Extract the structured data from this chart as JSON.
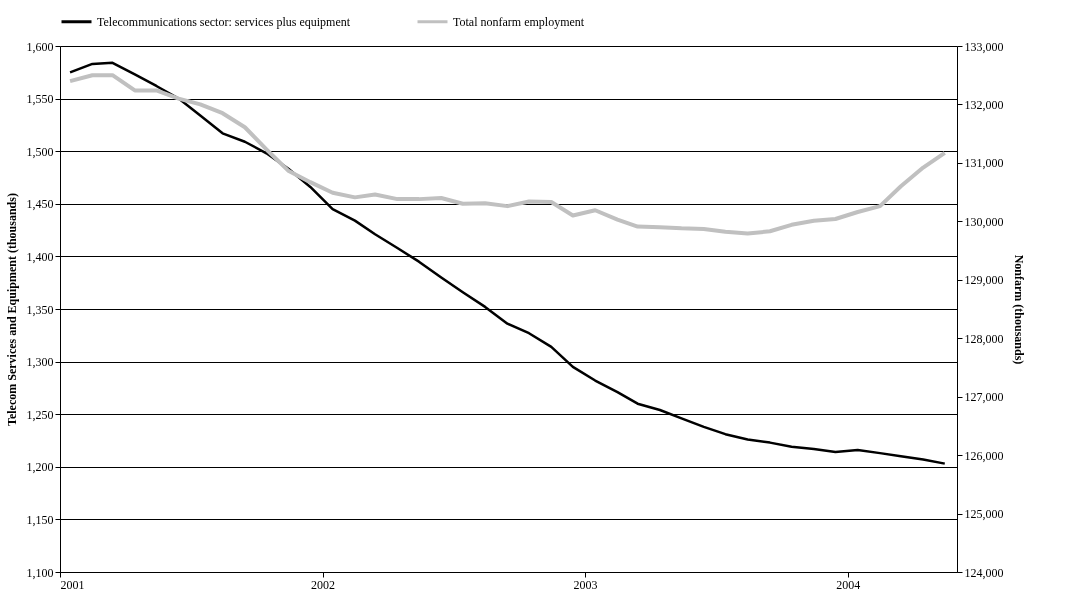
{
  "chart_data": {
    "type": "line",
    "xlabel": null,
    "ylabel": "Telecom Services and Equipment (thousands)",
    "y2label": "Nonfarm (thousands)",
    "x": [
      "2001-01-15",
      "2001-02-15",
      "2001-03-15",
      "2001-04-15",
      "2001-05-15",
      "2001-06-15",
      "2001-07-15",
      "2001-08-15",
      "2001-09-15",
      "2001-10-15",
      "2001-11-15",
      "2001-12-15",
      "2002-01-15",
      "2002-02-15",
      "2002-03-15",
      "2002-04-15",
      "2002-05-15",
      "2002-06-15",
      "2002-07-15",
      "2002-08-15",
      "2002-09-15",
      "2002-10-15",
      "2002-11-15",
      "2002-12-15",
      "2003-01-15",
      "2003-02-15",
      "2003-03-15",
      "2003-04-15",
      "2003-05-15",
      "2003-06-15",
      "2003-07-15",
      "2003-08-15",
      "2003-09-15",
      "2003-10-15",
      "2003-11-15",
      "2003-12-15",
      "2004-01-15",
      "2004-02-15",
      "2004-03-15",
      "2004-04-15",
      "2004-05-15"
    ],
    "series": [
      {
        "name": "Telecommunications sector: services plus equipment",
        "color": "#000000",
        "values": [
          1575,
          1583,
          1584,
          1573,
          1562,
          1550,
          1534,
          1517,
          1509,
          1498,
          1483,
          1466,
          1445,
          1434,
          1421,
          1408,
          1395,
          1380,
          1366,
          1352,
          1336,
          1327,
          1314,
          1295,
          1282,
          1271,
          1260,
          1254,
          1246,
          1238,
          1231,
          1226,
          1223,
          1219,
          1217,
          1214,
          1216,
          1213,
          1210,
          1207,
          1203
        ]
      },
      {
        "name": "Total nonfarm employment",
        "color": "#c0c0c0",
        "axis": "y2",
        "values": [
          132400,
          132500,
          132500,
          132240,
          132240,
          132100,
          132000,
          131850,
          131610,
          131230,
          130860,
          130670,
          130490,
          130410,
          130460,
          130380,
          130380,
          130400,
          130300,
          130310,
          130260,
          130340,
          130330,
          130100,
          130190,
          130030,
          129910,
          129900,
          129880,
          129870,
          129820,
          129790,
          129830,
          129940,
          130010,
          130040,
          130160,
          130260,
          130600,
          130920,
          131170
        ]
      }
    ],
    "xlim": [
      "2001-01",
      "2004-06"
    ],
    "xticks": [
      "2001",
      "2002",
      "2003",
      "2004"
    ],
    "ylim": [
      1100,
      1600
    ],
    "yticks": [
      {
        "value": 1100,
        "label": "1,100"
      },
      {
        "value": 1150,
        "label": "1,150"
      },
      {
        "value": 1200,
        "label": "1,200"
      },
      {
        "value": 1250,
        "label": "1,250"
      },
      {
        "value": 1300,
        "label": "1,300"
      },
      {
        "value": 1350,
        "label": "1,350"
      },
      {
        "value": 1400,
        "label": "1,400"
      },
      {
        "value": 1450,
        "label": "1,450"
      },
      {
        "value": 1500,
        "label": "1,500"
      },
      {
        "value": 1550,
        "label": "1,550"
      },
      {
        "value": 1600,
        "label": "1,600"
      }
    ],
    "y2lim": [
      124000,
      133000
    ],
    "y2ticks": [
      {
        "value": 124000,
        "label": "124,000"
      },
      {
        "value": 125000,
        "label": "125,000"
      },
      {
        "value": 126000,
        "label": "126,000"
      },
      {
        "value": 127000,
        "label": "127,000"
      },
      {
        "value": 128000,
        "label": "128,000"
      },
      {
        "value": 129000,
        "label": "129,000"
      },
      {
        "value": 130000,
        "label": "130,000"
      },
      {
        "value": 131000,
        "label": "131,000"
      },
      {
        "value": 132000,
        "label": "132,000"
      },
      {
        "value": 133000,
        "label": "133,000"
      }
    ],
    "grid": "y",
    "legend": "top",
    "marker": "none",
    "line_style": "solid"
  }
}
